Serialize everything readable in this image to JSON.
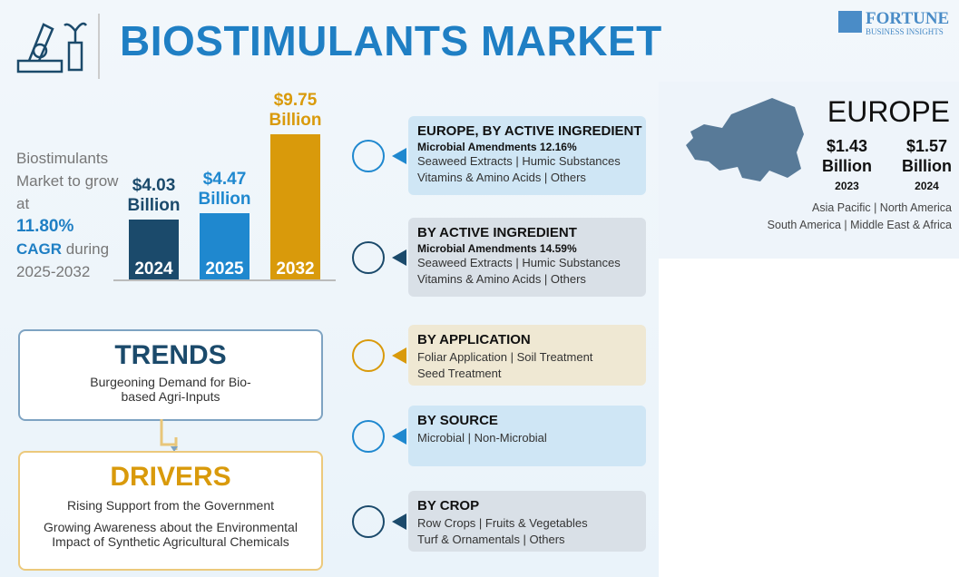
{
  "header": {
    "title": "BIOSTIMULANTS MARKET",
    "logo": "FORTUNE",
    "logo_sub": "BUSINESS INSIGHTS"
  },
  "intro": {
    "lead": "Biostimulants Market to grow at",
    "rate": "11.80%",
    "cagr": "CAGR",
    "tail": "during 2025-2032"
  },
  "chart_data": {
    "type": "bar",
    "categories": [
      "2024",
      "2025",
      "2032"
    ],
    "values": [
      4.03,
      4.47,
      9.75
    ],
    "value_labels": [
      "$4.03",
      "$4.47",
      "$9.75"
    ],
    "unit": "Billion",
    "colors": [
      "#1b4a6b",
      "#1f88cf",
      "#d99a0b"
    ]
  },
  "trends": {
    "title": "TRENDS",
    "text": "Burgeoning Demand for Bio-based Agri-Inputs"
  },
  "drivers": {
    "title": "DRIVERS",
    "items": [
      "Rising Support from the Government",
      "Growing Awareness about the Environmental Impact of Synthetic Agricultural Chemicals"
    ]
  },
  "segments": [
    {
      "title": "EUROPE, BY ACTIVE INGREDIENT",
      "highlight": "Microbial Amendments 12.16%",
      "lines": [
        "Seaweed Extracts | Humic Substances",
        "Vitamins & Amino Acids | Others"
      ]
    },
    {
      "title": "BY ACTIVE INGREDIENT",
      "highlight": "Microbial Amendments 14.59%",
      "lines": [
        "Seaweed Extracts | Humic Substances",
        "Vitamins & Amino Acids | Others"
      ]
    },
    {
      "title": "BY APPLICATION",
      "lines": [
        "Foliar Application | Soil Treatment",
        "Seed Treatment"
      ]
    },
    {
      "title": "BY SOURCE",
      "lines": [
        "Microbial | Non-Microbial"
      ]
    },
    {
      "title": "BY CROP",
      "lines": [
        "Row Crops | Fruits & Vegetables",
        "Turf & Ornamentals | Others"
      ]
    }
  ],
  "europe": {
    "title": "EUROPE",
    "figures": [
      {
        "value": "$1.43",
        "unit": "Billion",
        "year": "2023"
      },
      {
        "value": "$1.57",
        "unit": "Billion",
        "year": "2024"
      }
    ],
    "regions": [
      "Asia Pacific | North America",
      "South America | Middle East & Africa"
    ]
  }
}
